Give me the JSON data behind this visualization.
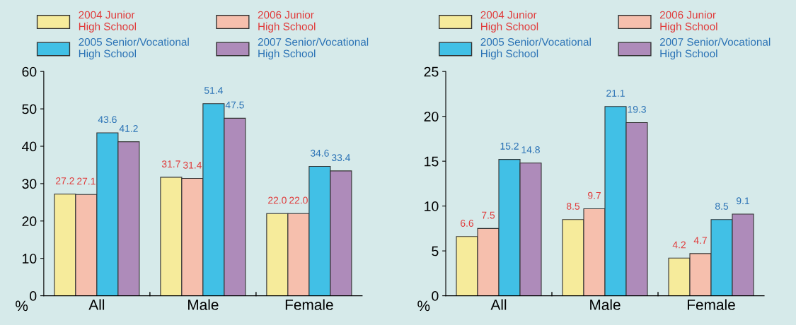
{
  "chart_data": [
    {
      "type": "bar",
      "categories": [
        "All",
        "Male",
        "Female"
      ],
      "ylabel": "%",
      "ylim": [
        0,
        60
      ],
      "yticks": [
        0,
        10,
        20,
        30,
        40,
        50,
        60
      ],
      "grid": false,
      "legend": "top",
      "series": [
        {
          "name": "2004 Junior High School",
          "color": "#f6eb9b",
          "values": [
            27.2,
            31.7,
            22.0
          ],
          "value_labels": [
            "27.2",
            "31.7",
            "22.0"
          ]
        },
        {
          "name": "2006 Junior High School",
          "color": "#f6bfad",
          "values": [
            27.1,
            31.4,
            22.0
          ],
          "value_labels": [
            "27.1",
            "31.4",
            "22.0"
          ]
        },
        {
          "name": "2005 Senior/Vocational High School",
          "color": "#41c0e6",
          "values": [
            43.6,
            51.4,
            34.6
          ],
          "value_labels": [
            "43.6",
            "51.4",
            "34.6"
          ]
        },
        {
          "name": "2007 Senior/Vocational High School",
          "color": "#ae8bba",
          "values": [
            41.2,
            47.5,
            33.4
          ],
          "value_labels": [
            "41.2",
            "47.5",
            "33.4"
          ]
        }
      ]
    },
    {
      "type": "bar",
      "categories": [
        "All",
        "Male",
        "Female"
      ],
      "ylabel": "%",
      "ylim": [
        0,
        25
      ],
      "yticks": [
        0,
        5,
        10,
        15,
        20,
        25
      ],
      "grid": false,
      "legend": "top",
      "series": [
        {
          "name": "2004 Junior High School",
          "color": "#f6eb9b",
          "values": [
            6.6,
            8.5,
            4.2
          ],
          "value_labels": [
            "6.6",
            "8.5",
            "4.2"
          ]
        },
        {
          "name": "2006 Junior High School",
          "color": "#f6bfad",
          "values": [
            7.5,
            9.7,
            4.7
          ],
          "value_labels": [
            "7.5",
            "9.7",
            "4.7"
          ]
        },
        {
          "name": "2005 Senior/Vocational High School",
          "color": "#41c0e6",
          "values": [
            15.2,
            21.1,
            8.5
          ],
          "value_labels": [
            "15.2",
            "21.1",
            "8.5"
          ]
        },
        {
          "name": "2007 Senior/Vocational High School",
          "color": "#ae8bba",
          "values": [
            14.8,
            19.3,
            9.1
          ],
          "value_labels": [
            "14.8",
            "19.3",
            "9.1"
          ]
        }
      ]
    }
  ]
}
